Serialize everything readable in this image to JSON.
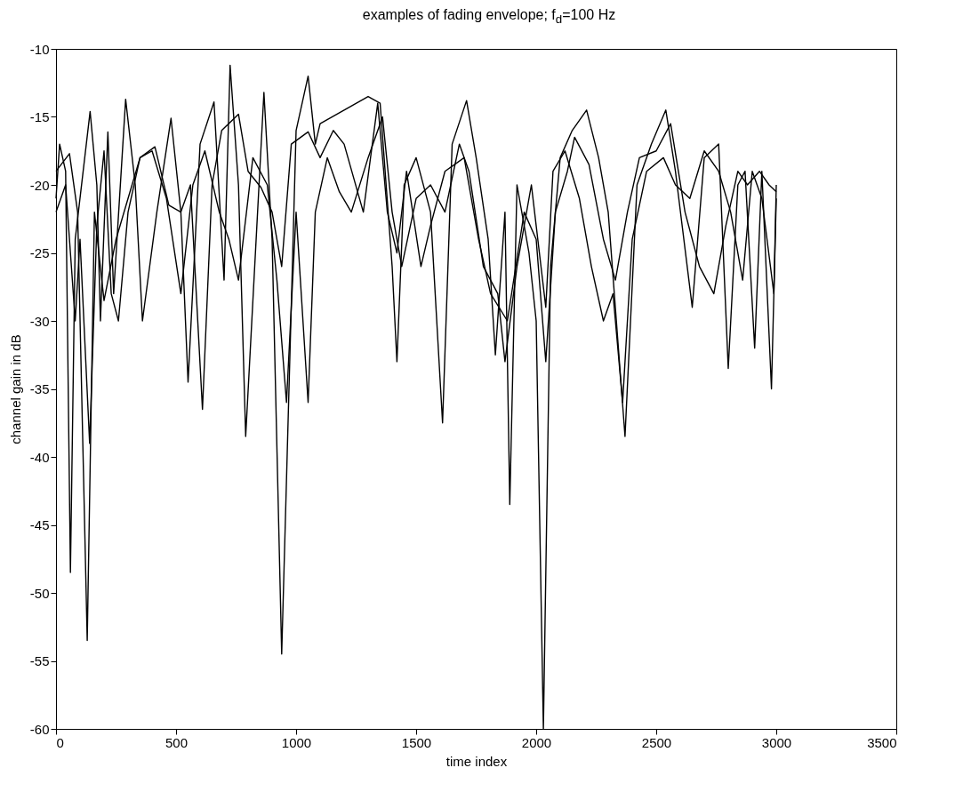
{
  "chart_data": {
    "type": "line",
    "title": "examples of fading envelope; f$_{d}$=100 Hz",
    "xlabel": "time index",
    "ylabel": "channel gain in dB",
    "xlim": [
      0,
      3500
    ],
    "ylim": [
      -60,
      -10
    ],
    "xticks": [
      0,
      500,
      1000,
      1500,
      2000,
      2500,
      3000,
      3500
    ],
    "yticks": [
      -60,
      -55,
      -50,
      -45,
      -40,
      -35,
      -30,
      -25,
      -20,
      -15,
      -10
    ],
    "grid": false,
    "line_style": "solid",
    "marker": "none",
    "series": [
      {
        "color": "#000000",
        "x": [
          0,
          15,
          40,
          60,
          80,
          142,
          170,
          185,
          216,
          240,
          290,
          330,
          360,
          420,
          479,
          520,
          550,
          600,
          658,
          700,
          725,
          760,
          790,
          866,
          900,
          940,
          1000,
          1050,
          1080,
          1100,
          1200,
          1300,
          1350,
          1400,
          1420,
          1450,
          1500,
          1560,
          1610,
          1650,
          1710,
          1750,
          1800,
          1830,
          1870,
          1890,
          1920,
          1970,
          2000,
          2030,
          2060,
          2100,
          2150,
          2210,
          2260,
          2300,
          2370,
          2420,
          2480,
          2540,
          2580,
          2650,
          2700,
          2760,
          2800,
          2840,
          2870,
          2910,
          2940,
          2980,
          3000
        ],
        "values": [
          -21,
          -17,
          -19,
          -48.5,
          -24,
          -14.6,
          -20,
          -30,
          -16.1,
          -28,
          -13.7,
          -20,
          -30,
          -22,
          -15.1,
          -22,
          -34.5,
          -17,
          -13.9,
          -27,
          -11.2,
          -20,
          -38.5,
          -13.2,
          -24,
          -54.5,
          -16,
          -12,
          -17,
          -15.5,
          -14.5,
          -13.5,
          -14,
          -26,
          -33,
          -20,
          -18,
          -22,
          -37.5,
          -17,
          -13.8,
          -18,
          -24,
          -32.5,
          -22,
          -43.5,
          -20,
          -25,
          -30,
          -60,
          -26,
          -18,
          -16,
          -14.5,
          -18,
          -22,
          -38.5,
          -20,
          -17,
          -14.5,
          -19,
          -29,
          -18,
          -17,
          -33.5,
          -20,
          -19,
          -32,
          -19,
          -35,
          -21
        ]
      },
      {
        "color": "#000000",
        "x": [
          0,
          56,
          90,
          130,
          160,
          200,
          250,
          300,
          350,
          412,
          470,
          520,
          560,
          610,
          650,
          690,
          760,
          800,
          854,
          900,
          940,
          980,
          1050,
          1100,
          1155,
          1200,
          1280,
          1340,
          1380,
          1420,
          1460,
          1520,
          1560,
          1620,
          1700,
          1760,
          1810,
          1880,
          1950,
          2000,
          2040,
          2080,
          2130,
          2160,
          2220,
          2280,
          2330,
          2380,
          2430,
          2500,
          2560,
          2620,
          2680,
          2740,
          2790,
          2840,
          2880,
          2930,
          2970,
          3000
        ],
        "values": [
          -19,
          -17.7,
          -22,
          -53.5,
          -22,
          -28.5,
          -24,
          -21,
          -18,
          -17.2,
          -21.5,
          -22,
          -20,
          -36.5,
          -20,
          -16,
          -14.8,
          -19,
          -20.2,
          -22,
          -26,
          -17,
          -16.1,
          -18,
          -16,
          -17,
          -22,
          -14,
          -22,
          -25,
          -19,
          -26,
          -23,
          -19,
          -18,
          -24,
          -28,
          -30,
          -22,
          -24,
          -33,
          -22,
          -19,
          -16.5,
          -18.5,
          -24,
          -27,
          -22,
          -18,
          -17.5,
          -15.5,
          -22,
          -26,
          -28,
          -23,
          -19,
          -20,
          -19,
          -20,
          -20.5
        ]
      },
      {
        "color": "#000000",
        "x": [
          0,
          40,
          80,
          100,
          140,
          170,
          200,
          230,
          260,
          300,
          350,
          400,
          460,
          520,
          570,
          620,
          680,
          720,
          760,
          820,
          880,
          920,
          960,
          1000,
          1050,
          1080,
          1130,
          1180,
          1230,
          1300,
          1360,
          1400,
          1440,
          1500,
          1560,
          1620,
          1680,
          1720,
          1780,
          1840,
          1870,
          1920,
          1980,
          2040,
          2070,
          2120,
          2180,
          2230,
          2280,
          2320,
          2360,
          2400,
          2460,
          2530,
          2580,
          2640,
          2700,
          2760,
          2810,
          2860,
          2900,
          2940,
          2990,
          3000
        ],
        "values": [
          -22,
          -20,
          -30,
          -24,
          -39,
          -23,
          -17.5,
          -28,
          -30,
          -22,
          -18,
          -17.5,
          -21,
          -28,
          -20,
          -17.5,
          -22,
          -24,
          -27,
          -18,
          -20,
          -27,
          -36,
          -22,
          -36,
          -22,
          -18,
          -20.5,
          -22,
          -18,
          -15,
          -22,
          -26,
          -21,
          -20,
          -22,
          -17,
          -19,
          -26,
          -28,
          -33,
          -26,
          -20,
          -29,
          -19,
          -17.5,
          -21,
          -26,
          -30,
          -28,
          -36,
          -24,
          -19,
          -18,
          -20,
          -21,
          -17.5,
          -19,
          -22,
          -27,
          -19,
          -21,
          -28,
          -20
        ]
      }
    ]
  }
}
